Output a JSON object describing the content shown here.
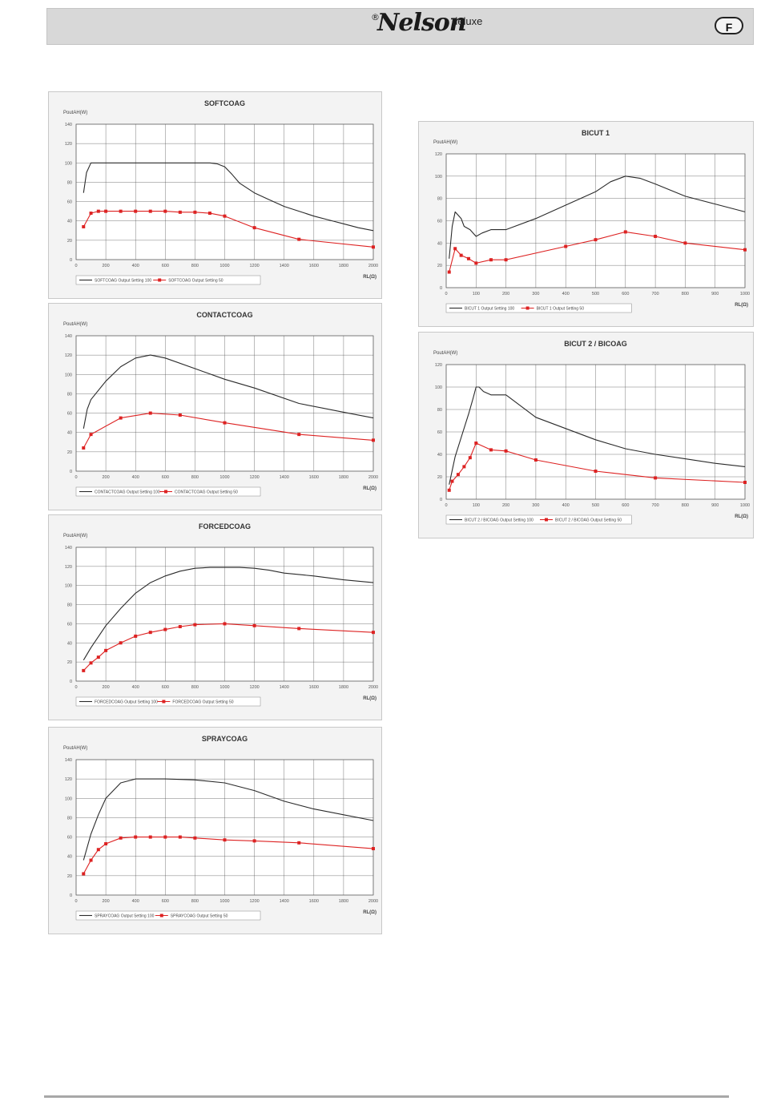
{
  "header": {
    "reg_mark": "®",
    "brand": "Nelson",
    "brand_suffix": "deluxe",
    "lang_badge": "F"
  },
  "charts": [
    {
      "title": "SOFTCOAG",
      "ylabel": "PoutAH(W)",
      "xlabel": "RL(Ω)",
      "xlim": [
        0,
        2000
      ],
      "ylim": [
        0,
        140
      ],
      "xticks": [
        0,
        200,
        400,
        600,
        800,
        1000,
        1200,
        1400,
        1600,
        1800,
        2000
      ],
      "yticks": [
        0,
        20,
        40,
        60,
        80,
        100,
        120,
        140
      ],
      "series": [
        {
          "name": "SOFTCOAG Output Setting 100",
          "color": "#2a2a2a",
          "marker": false,
          "points": [
            [
              50,
              69
            ],
            [
              70,
              90
            ],
            [
              100,
              100
            ],
            [
              150,
              100
            ],
            [
              300,
              100
            ],
            [
              600,
              100
            ],
            [
              900,
              100
            ],
            [
              950,
              99
            ],
            [
              1000,
              96
            ],
            [
              1050,
              88
            ],
            [
              1100,
              79
            ],
            [
              1200,
              69
            ],
            [
              1300,
              62
            ],
            [
              1400,
              55
            ],
            [
              1500,
              50
            ],
            [
              1600,
              45
            ],
            [
              1700,
              41
            ],
            [
              1800,
              37
            ],
            [
              1900,
              33
            ],
            [
              2000,
              30
            ]
          ]
        },
        {
          "name": "SOFTCOAG Output Setting 50",
          "color": "#dd2222",
          "marker": true,
          "points": [
            [
              50,
              34
            ],
            [
              100,
              48
            ],
            [
              150,
              50
            ],
            [
              200,
              50
            ],
            [
              300,
              50
            ],
            [
              400,
              50
            ],
            [
              500,
              50
            ],
            [
              600,
              50
            ],
            [
              700,
              49
            ],
            [
              800,
              49
            ],
            [
              900,
              48
            ],
            [
              1000,
              45
            ],
            [
              1200,
              33
            ],
            [
              1500,
              21
            ],
            [
              2000,
              13
            ]
          ]
        }
      ]
    },
    {
      "title": "CONTACTCOAG",
      "ylabel": "PoutAH(W)",
      "xlabel": "RL(Ω)",
      "xlim": [
        0,
        2000
      ],
      "ylim": [
        0,
        140
      ],
      "xticks": [
        0,
        200,
        400,
        600,
        800,
        1000,
        1200,
        1400,
        1600,
        1800,
        2000
      ],
      "yticks": [
        0,
        20,
        40,
        60,
        80,
        100,
        120,
        140
      ],
      "series": [
        {
          "name": "CONTACTCOAG Output Setting 100",
          "color": "#2a2a2a",
          "marker": false,
          "points": [
            [
              50,
              44
            ],
            [
              75,
              64
            ],
            [
              100,
              74
            ],
            [
              200,
              93
            ],
            [
              300,
              108
            ],
            [
              400,
              117
            ],
            [
              500,
              120
            ],
            [
              600,
              117
            ],
            [
              800,
              106
            ],
            [
              1000,
              95
            ],
            [
              1200,
              86
            ],
            [
              1500,
              70
            ],
            [
              1800,
              61
            ],
            [
              2000,
              55
            ]
          ]
        },
        {
          "name": "CONTACTCOAG Output Setting 50",
          "color": "#dd2222",
          "marker": true,
          "points": [
            [
              50,
              24
            ],
            [
              100,
              38
            ],
            [
              300,
              55
            ],
            [
              500,
              60
            ],
            [
              700,
              58
            ],
            [
              1000,
              50
            ],
            [
              1500,
              38
            ],
            [
              2000,
              32
            ]
          ]
        }
      ]
    },
    {
      "title": "FORCEDCOAG",
      "ylabel": "PoutAH(W)",
      "xlabel": "RL(Ω)",
      "xlim": [
        0,
        2000
      ],
      "ylim": [
        0,
        140
      ],
      "xticks": [
        0,
        200,
        400,
        600,
        800,
        1000,
        1200,
        1400,
        1600,
        1800,
        2000
      ],
      "yticks": [
        0,
        20,
        40,
        60,
        80,
        100,
        120,
        140
      ],
      "series": [
        {
          "name": "FORCEDCOAG Output Setting 100",
          "color": "#2a2a2a",
          "marker": false,
          "points": [
            [
              50,
              22
            ],
            [
              100,
              35
            ],
            [
              200,
              58
            ],
            [
              300,
              76
            ],
            [
              400,
              92
            ],
            [
              500,
              103
            ],
            [
              600,
              110
            ],
            [
              700,
              115
            ],
            [
              800,
              118
            ],
            [
              900,
              119
            ],
            [
              1000,
              119
            ],
            [
              1100,
              119
            ],
            [
              1200,
              118
            ],
            [
              1300,
              116
            ],
            [
              1400,
              113
            ],
            [
              1600,
              110
            ],
            [
              1800,
              106
            ],
            [
              2000,
              103
            ]
          ]
        },
        {
          "name": "FORCEDCOAG Output Setting 50",
          "color": "#dd2222",
          "marker": true,
          "points": [
            [
              50,
              11
            ],
            [
              100,
              19
            ],
            [
              150,
              25
            ],
            [
              200,
              32
            ],
            [
              300,
              40
            ],
            [
              400,
              47
            ],
            [
              500,
              51
            ],
            [
              600,
              54
            ],
            [
              700,
              57
            ],
            [
              800,
              59
            ],
            [
              1000,
              60
            ],
            [
              1200,
              58
            ],
            [
              1500,
              55
            ],
            [
              2000,
              51
            ]
          ]
        }
      ]
    },
    {
      "title": "SPRAYCOAG",
      "ylabel": "PoutAH(W)",
      "xlabel": "RL(Ω)",
      "xlim": [
        0,
        2000
      ],
      "ylim": [
        0,
        140
      ],
      "xticks": [
        0,
        200,
        400,
        600,
        800,
        1000,
        1200,
        1400,
        1600,
        1800,
        2000
      ],
      "yticks": [
        0,
        20,
        40,
        60,
        80,
        100,
        120,
        140
      ],
      "series": [
        {
          "name": "SPRAYCOAG Output Setting 100",
          "color": "#2a2a2a",
          "marker": false,
          "points": [
            [
              50,
              36
            ],
            [
              100,
              63
            ],
            [
              150,
              83
            ],
            [
              200,
              100
            ],
            [
              300,
              116
            ],
            [
              400,
              120
            ],
            [
              600,
              120
            ],
            [
              800,
              119
            ],
            [
              1000,
              116
            ],
            [
              1200,
              108
            ],
            [
              1400,
              97
            ],
            [
              1600,
              89
            ],
            [
              1800,
              83
            ],
            [
              2000,
              77
            ]
          ]
        },
        {
          "name": "SPRAYCOAG Output Setting 50",
          "color": "#dd2222",
          "marker": true,
          "points": [
            [
              50,
              22
            ],
            [
              100,
              36
            ],
            [
              150,
              47
            ],
            [
              200,
              53
            ],
            [
              300,
              59
            ],
            [
              400,
              60
            ],
            [
              500,
              60
            ],
            [
              600,
              60
            ],
            [
              700,
              60
            ],
            [
              800,
              59
            ],
            [
              1000,
              57
            ],
            [
              1200,
              56
            ],
            [
              1500,
              54
            ],
            [
              2000,
              48
            ]
          ]
        }
      ]
    },
    {
      "title": "BICUT 1",
      "ylabel": "PoutAH(W)",
      "xlabel": "RL(Ω)",
      "xlim": [
        0,
        1000
      ],
      "ylim": [
        0,
        120
      ],
      "xticks": [
        0,
        100,
        200,
        300,
        400,
        500,
        600,
        700,
        800,
        900,
        1000
      ],
      "yticks": [
        0,
        20,
        40,
        60,
        80,
        100,
        120
      ],
      "series": [
        {
          "name": "BICUT 1 Output Setting 100",
          "color": "#2a2a2a",
          "marker": false,
          "points": [
            [
              10,
              26
            ],
            [
              20,
              55
            ],
            [
              30,
              68
            ],
            [
              50,
              62
            ],
            [
              60,
              55
            ],
            [
              80,
              52
            ],
            [
              100,
              46
            ],
            [
              120,
              49
            ],
            [
              150,
              52
            ],
            [
              200,
              52
            ],
            [
              300,
              62
            ],
            [
              400,
              74
            ],
            [
              500,
              86
            ],
            [
              550,
              95
            ],
            [
              600,
              100
            ],
            [
              650,
              98
            ],
            [
              700,
              93
            ],
            [
              800,
              82
            ],
            [
              900,
              75
            ],
            [
              1000,
              68
            ]
          ]
        },
        {
          "name": "BICUT 1 Output Setting 50",
          "color": "#dd2222",
          "marker": true,
          "points": [
            [
              10,
              14
            ],
            [
              30,
              35
            ],
            [
              50,
              29
            ],
            [
              75,
              26
            ],
            [
              100,
              22
            ],
            [
              150,
              25
            ],
            [
              200,
              25
            ],
            [
              400,
              37
            ],
            [
              500,
              43
            ],
            [
              600,
              50
            ],
            [
              700,
              46
            ],
            [
              800,
              40
            ],
            [
              1000,
              34
            ]
          ]
        }
      ]
    },
    {
      "title": "BICUT 2 / BICOAG",
      "ylabel": "PoutAH(W)",
      "xlabel": "RL(Ω)",
      "xlim": [
        0,
        1000
      ],
      "ylim": [
        0,
        120
      ],
      "xticks": [
        0,
        100,
        200,
        300,
        400,
        500,
        600,
        700,
        800,
        900,
        1000
      ],
      "yticks": [
        0,
        20,
        40,
        60,
        80,
        100,
        120
      ],
      "series": [
        {
          "name": "BICUT 2 / BICOAG Output Setting 100",
          "color": "#2a2a2a",
          "marker": false,
          "points": [
            [
              10,
              13
            ],
            [
              30,
              38
            ],
            [
              50,
              55
            ],
            [
              75,
              76
            ],
            [
              90,
              90
            ],
            [
              100,
              100
            ],
            [
              110,
              100
            ],
            [
              125,
              96
            ],
            [
              150,
              93
            ],
            [
              200,
              93
            ],
            [
              250,
              83
            ],
            [
              300,
              73
            ],
            [
              400,
              63
            ],
            [
              500,
              53
            ],
            [
              600,
              45
            ],
            [
              700,
              40
            ],
            [
              800,
              36
            ],
            [
              900,
              32
            ],
            [
              1000,
              29
            ]
          ]
        },
        {
          "name": "BICUT 2 / BICOAG Output Setting 50",
          "color": "#dd2222",
          "marker": true,
          "points": [
            [
              10,
              8
            ],
            [
              20,
              16
            ],
            [
              40,
              22
            ],
            [
              60,
              29
            ],
            [
              80,
              37
            ],
            [
              100,
              50
            ],
            [
              150,
              44
            ],
            [
              200,
              43
            ],
            [
              300,
              35
            ],
            [
              500,
              25
            ],
            [
              700,
              19
            ],
            [
              1000,
              15
            ]
          ]
        }
      ]
    }
  ]
}
